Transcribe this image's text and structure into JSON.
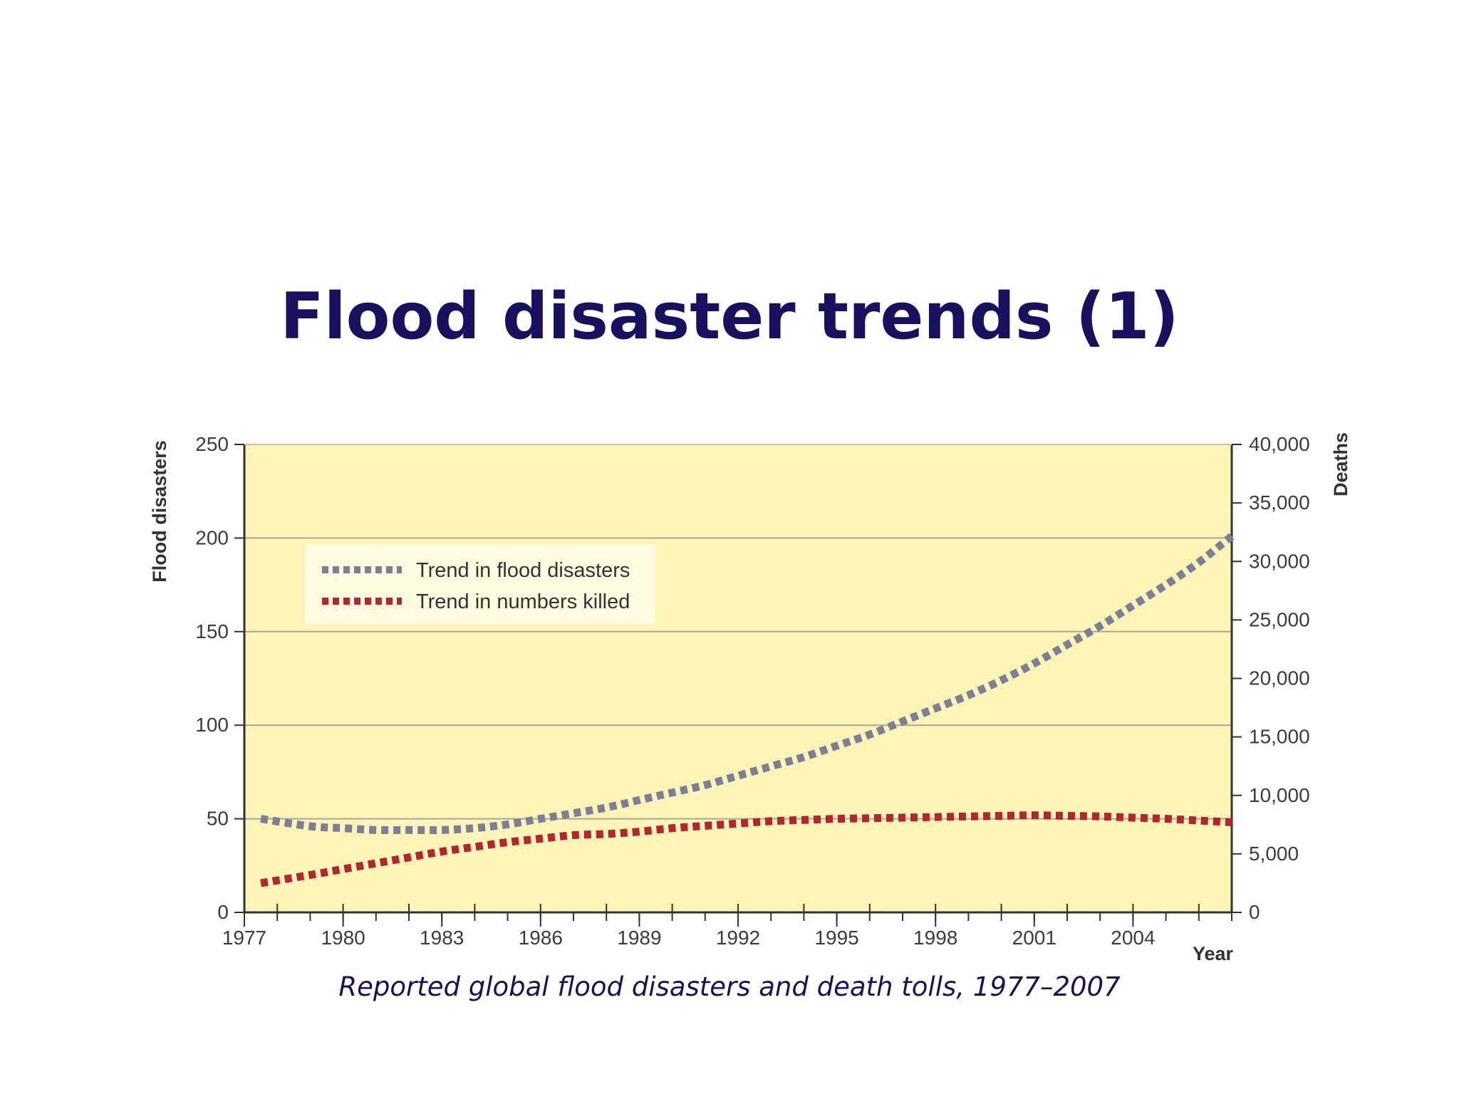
{
  "slide": {
    "title": "Flood disaster trends (1)",
    "caption": "Reported global flood disasters and death tolls, 1977–2007"
  },
  "colors": {
    "title": "#1a1060",
    "plot_background": "#fdf4b8",
    "flood_series": "#7d7f98",
    "killed_series": "#b3262e",
    "gridline": "#a8a89a"
  },
  "chart_data": {
    "type": "line",
    "xlabel": "Year",
    "ylabel": "Flood disasters",
    "y2label": "Deaths",
    "xlim": [
      1977,
      2007
    ],
    "ylim": [
      0,
      250
    ],
    "y2lim": [
      0,
      40000
    ],
    "x_tick_labels": [
      "1977",
      "1980",
      "1983",
      "1986",
      "1989",
      "1992",
      "1995",
      "1998",
      "2001",
      "2004"
    ],
    "y_tick_labels": [
      "0",
      "50",
      "100",
      "150",
      "200",
      "250"
    ],
    "y2_tick_labels": [
      "0",
      "5,000",
      "10,000",
      "15,000",
      "20,000",
      "25,000",
      "30,000",
      "35,000",
      "40,000"
    ],
    "grid": true,
    "legend_position": "upper-left",
    "series": [
      {
        "name": "Trend in flood disasters",
        "axis": "left",
        "x": [
          1977.5,
          1979,
          1980,
          1981,
          1982,
          1983,
          1984,
          1985,
          1986,
          1987,
          1988,
          1989,
          1990,
          1991,
          1992,
          1993,
          1994,
          1995,
          1996,
          1997,
          1998,
          1999,
          2000,
          2001,
          2002,
          2003,
          2004,
          2005,
          2006,
          2007
        ],
        "values": [
          50,
          46,
          45,
          44,
          44,
          44,
          45,
          47,
          50,
          53,
          56,
          60,
          64,
          68,
          73,
          78,
          83,
          89,
          95,
          102,
          109,
          116,
          124,
          133,
          143,
          153,
          164,
          175,
          187,
          201
        ]
      },
      {
        "name": "Trend in numbers killed",
        "axis": "right",
        "x": [
          1977.5,
          1979,
          1980,
          1981,
          1982,
          1983,
          1984,
          1985,
          1986,
          1987,
          1988,
          1989,
          1990,
          1991,
          1992,
          1993,
          1994,
          1995,
          1996,
          1997,
          1998,
          1999,
          2000,
          2001,
          2002,
          2003,
          2004,
          2005,
          2006,
          2007
        ],
        "values": [
          2500,
          3200,
          3700,
          4200,
          4700,
          5200,
          5600,
          6000,
          6300,
          6600,
          6700,
          6900,
          7200,
          7400,
          7600,
          7800,
          7900,
          8000,
          8050,
          8100,
          8150,
          8200,
          8250,
          8300,
          8250,
          8200,
          8100,
          8000,
          7850,
          7700
        ]
      }
    ]
  }
}
